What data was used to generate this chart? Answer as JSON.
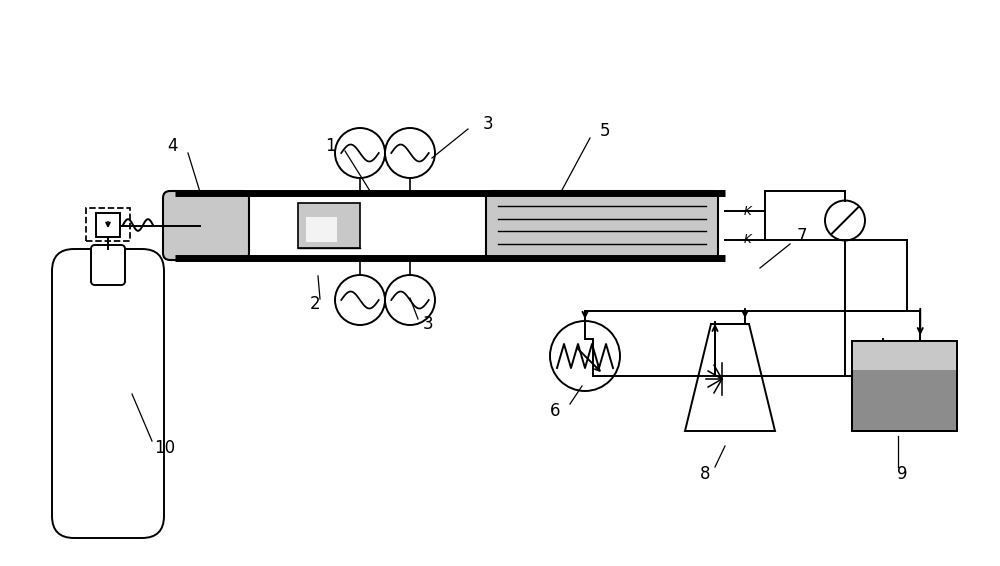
{
  "bg_color": "#ffffff",
  "lc": "#000000",
  "gray_light": "#c8c8c8",
  "gray_medium": "#8c8c8c",
  "gray_dark": "#606060"
}
